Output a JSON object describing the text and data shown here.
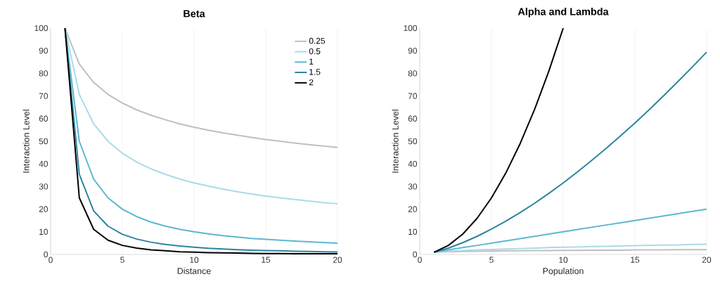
{
  "chart_data": [
    {
      "type": "line",
      "title": "Beta",
      "xlabel": "Distance",
      "ylabel": "Interaction Level",
      "x": [
        1,
        2,
        3,
        4,
        5,
        6,
        7,
        8,
        9,
        10,
        11,
        12,
        13,
        14,
        15,
        16,
        17,
        18,
        19,
        20
      ],
      "series": [
        {
          "name": "0.25",
          "color": "#bfbfbf",
          "values": [
            100,
            84.1,
            76.0,
            70.7,
            66.9,
            63.9,
            61.5,
            59.5,
            57.7,
            56.2,
            54.9,
            53.7,
            52.7,
            51.7,
            50.8,
            50,
            49.2,
            48.5,
            47.9,
            47.3
          ]
        },
        {
          "name": "0.5",
          "color": "#a9dbe8",
          "values": [
            100,
            70.7,
            57.7,
            50,
            44.7,
            40.8,
            37.8,
            35.4,
            33.3,
            31.6,
            30.2,
            28.9,
            27.7,
            26.7,
            25.8,
            25,
            24.3,
            23.6,
            22.9,
            22.4
          ]
        },
        {
          "name": "1",
          "color": "#5db7d0",
          "values": [
            100,
            50,
            33.3,
            25,
            20,
            16.7,
            14.3,
            12.5,
            11.1,
            10,
            9.1,
            8.3,
            7.7,
            7.1,
            6.7,
            6.3,
            5.9,
            5.6,
            5.3,
            5
          ]
        },
        {
          "name": "1.5",
          "color": "#2b84a0",
          "values": [
            100,
            35.4,
            19.2,
            12.5,
            8.9,
            6.8,
            5.4,
            4.4,
            3.7,
            3.2,
            2.7,
            2.4,
            2.1,
            1.9,
            1.7,
            1.6,
            1.4,
            1.3,
            1.2,
            1.1
          ]
        },
        {
          "name": "2",
          "color": "#000000",
          "values": [
            100,
            25,
            11.1,
            6.3,
            4,
            2.8,
            2.0,
            1.6,
            1.2,
            1,
            0.8,
            0.7,
            0.6,
            0.5,
            0.4,
            0.4,
            0.3,
            0.3,
            0.3,
            0.3
          ]
        }
      ],
      "xlim": [
        0,
        20
      ],
      "xticks": [
        0,
        5,
        10,
        15,
        20
      ],
      "ylim": [
        0,
        100
      ],
      "yticks": [
        0,
        10,
        20,
        30,
        40,
        50,
        60,
        70,
        80,
        90,
        100
      ],
      "grid": "x",
      "legend": "top right",
      "marker": "none"
    },
    {
      "type": "line",
      "title": "Alpha and Lambda",
      "xlabel": "Population",
      "ylabel": "Interaction Level",
      "x": [
        1,
        2,
        3,
        4,
        5,
        6,
        7,
        8,
        9,
        10,
        11,
        12,
        13,
        14,
        15,
        16,
        17,
        18,
        19,
        20
      ],
      "series": [
        {
          "color": "#bfbfbf",
          "values": [
            1,
            1.2,
            1.3,
            1.4,
            1.5,
            1.6,
            1.6,
            1.7,
            1.7,
            1.8,
            1.8,
            1.9,
            1.9,
            1.9,
            2,
            2,
            2,
            2.1,
            2.1,
            2.1
          ]
        },
        {
          "color": "#a9dbe8",
          "values": [
            1,
            1.4,
            1.7,
            2,
            2.2,
            2.4,
            2.6,
            2.8,
            3,
            3.2,
            3.3,
            3.5,
            3.6,
            3.7,
            3.9,
            4,
            4.1,
            4.2,
            4.4,
            4.5
          ]
        },
        {
          "color": "#5db7d0",
          "values": [
            1,
            2,
            3,
            4,
            5,
            6,
            7,
            8,
            9,
            10,
            11,
            12,
            13,
            14,
            15,
            16,
            17,
            18,
            19,
            20
          ]
        },
        {
          "color": "#2b84a0",
          "values": [
            1,
            2.8,
            5.2,
            8,
            11.2,
            14.7,
            18.5,
            22.6,
            27,
            31.6,
            36.5,
            41.6,
            46.9,
            52.4,
            58.1,
            64,
            70.1,
            76.4,
            82.8,
            89.4
          ]
        },
        {
          "color": "#000000",
          "x": [
            1,
            2,
            3,
            4,
            5,
            6,
            7,
            8,
            9,
            10
          ],
          "values": [
            1,
            4,
            9,
            16,
            25,
            36,
            49,
            64,
            81,
            100
          ]
        }
      ],
      "xlim": [
        0,
        20
      ],
      "xticks": [
        0,
        5,
        10,
        15,
        20
      ],
      "ylim": [
        0,
        100
      ],
      "yticks": [
        0,
        10,
        20,
        30,
        40,
        50,
        60,
        70,
        80,
        90,
        100
      ],
      "grid": "x",
      "legend": false,
      "marker": "none"
    }
  ]
}
